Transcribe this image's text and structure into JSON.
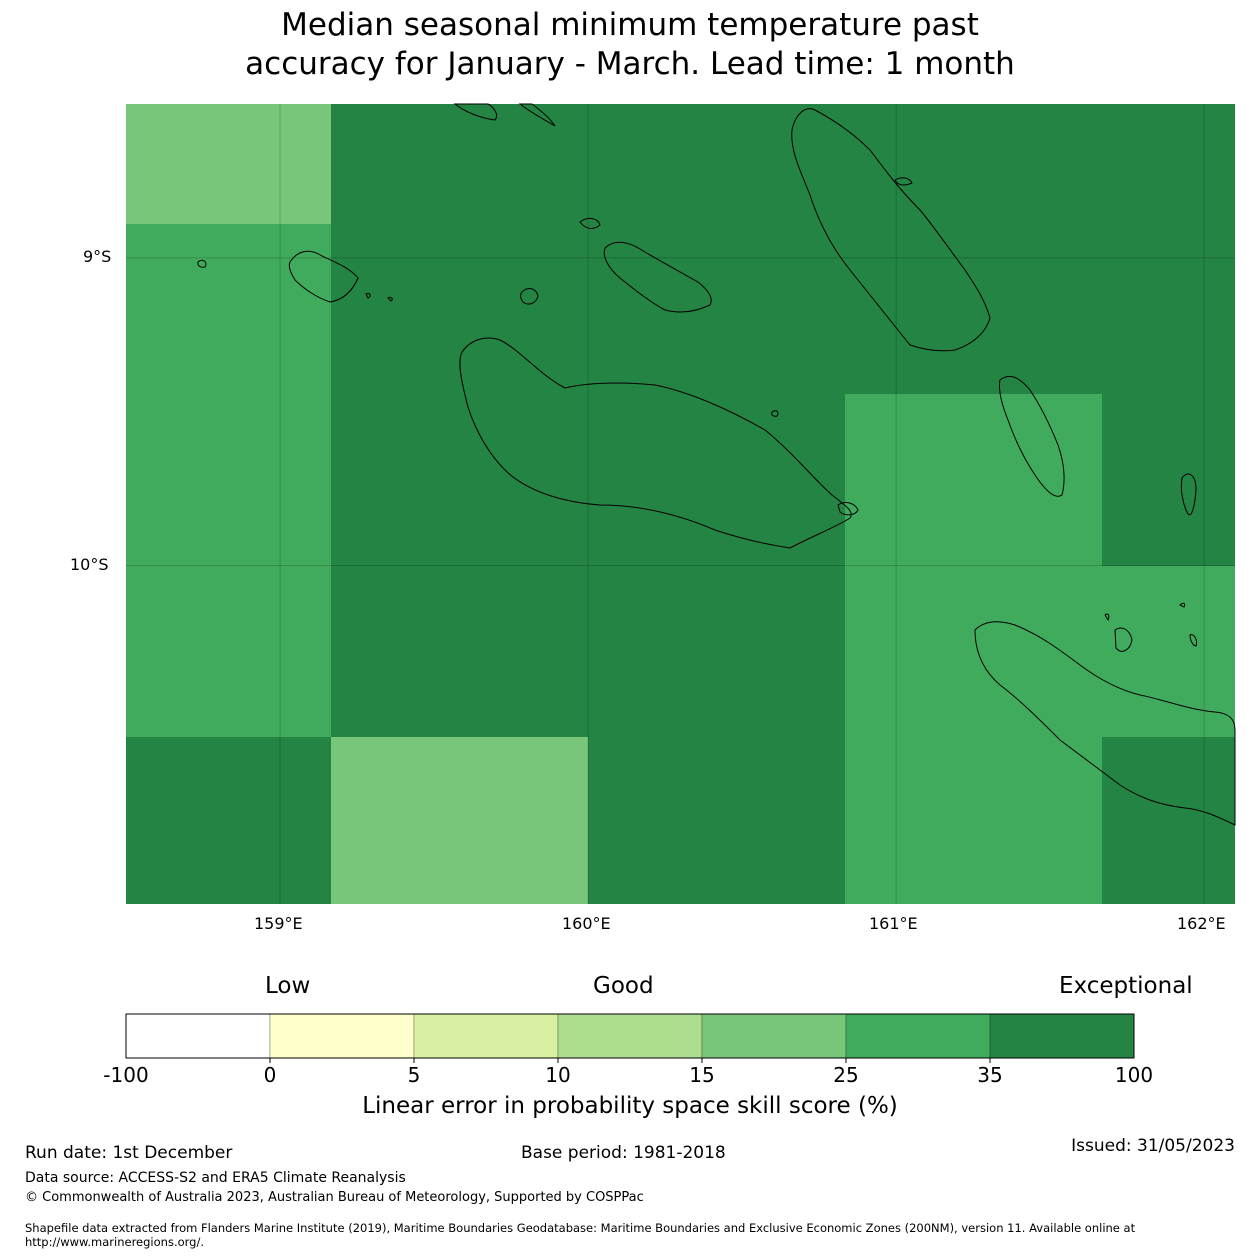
{
  "title": {
    "line1": "Median seasonal minimum temperature past",
    "line2": "accuracy for January - March. Lead time: 1 month"
  },
  "map": {
    "lon_labels": [
      "159°E",
      "160°E",
      "161°E",
      "162°E"
    ],
    "lat_labels": [
      "9°S",
      "10°S"
    ],
    "extent": {
      "lon_min": 158.5,
      "lon_max": 162.1,
      "lat_min": -11.1,
      "lat_max": -8.5
    },
    "cells": [
      {
        "lon": [
          158.5,
          159.167
        ],
        "lat": [
          -8.5,
          -8.889
        ],
        "category": "15-25"
      },
      {
        "lon": [
          158.5,
          159.167
        ],
        "lat": [
          -8.889,
          -10.556
        ],
        "category": "25-35"
      },
      {
        "lon": [
          158.5,
          159.167
        ],
        "lat": [
          -10.556,
          -11.1
        ],
        "category": "35-100"
      },
      {
        "lon": [
          159.167,
          160.833
        ],
        "lat": [
          -8.5,
          -10.556
        ],
        "category": "35-100"
      },
      {
        "lon": [
          159.167,
          160.0
        ],
        "lat": [
          -10.556,
          -11.1
        ],
        "category": "15-25"
      },
      {
        "lon": [
          160.0,
          160.833
        ],
        "lat": [
          -10.556,
          -11.1
        ],
        "category": "35-100"
      },
      {
        "lon": [
          160.833,
          162.1
        ],
        "lat": [
          -8.5,
          -9.444
        ],
        "category": "35-100"
      },
      {
        "lon": [
          160.833,
          161.667
        ],
        "lat": [
          -9.444,
          -11.1
        ],
        "category": "25-35"
      },
      {
        "lon": [
          161.667,
          162.1
        ],
        "lat": [
          -9.444,
          -10.0
        ],
        "category": "35-100"
      },
      {
        "lon": [
          161.667,
          162.1
        ],
        "lat": [
          -10.0,
          -10.556
        ],
        "category": "25-35"
      },
      {
        "lon": [
          161.667,
          162.1
        ],
        "lat": [
          -10.556,
          -11.1
        ],
        "category": "35-100"
      }
    ]
  },
  "colorbar": {
    "words": {
      "low": "Low",
      "good": "Good",
      "exceptional": "Exceptional"
    },
    "ticks": [
      "-100",
      "0",
      "5",
      "10",
      "15",
      "25",
      "35",
      "100"
    ],
    "colors": {
      "-100-0": "#ffffff",
      "0-5": "#ffffcc",
      "5-10": "#d9f0a3",
      "10-15": "#addd8e",
      "15-25": "#78c679",
      "25-35": "#41ab5d",
      "35-100": "#238443"
    },
    "label": "Linear error in probability space skill score (%)"
  },
  "footer": {
    "run_date": "Run date: 1st December",
    "base_period": "Base period: 1981-2018",
    "issued": "Issued: 31/05/2023",
    "data_source": "Data source: ACCESS-S2 and ERA5 Climate Reanalysis",
    "copyright": "© Commonwealth of Australia 2023, Australian Bureau of Meteorology, Supported by COSPPac",
    "shapefile": "Shapefile data extracted from Flanders Marine Institute (2019), Maritime Boundaries Geodatabase: Maritime Boundaries and Exclusive Economic Zones (200NM), version 11. Available online at http://www.marineregions.org/."
  }
}
